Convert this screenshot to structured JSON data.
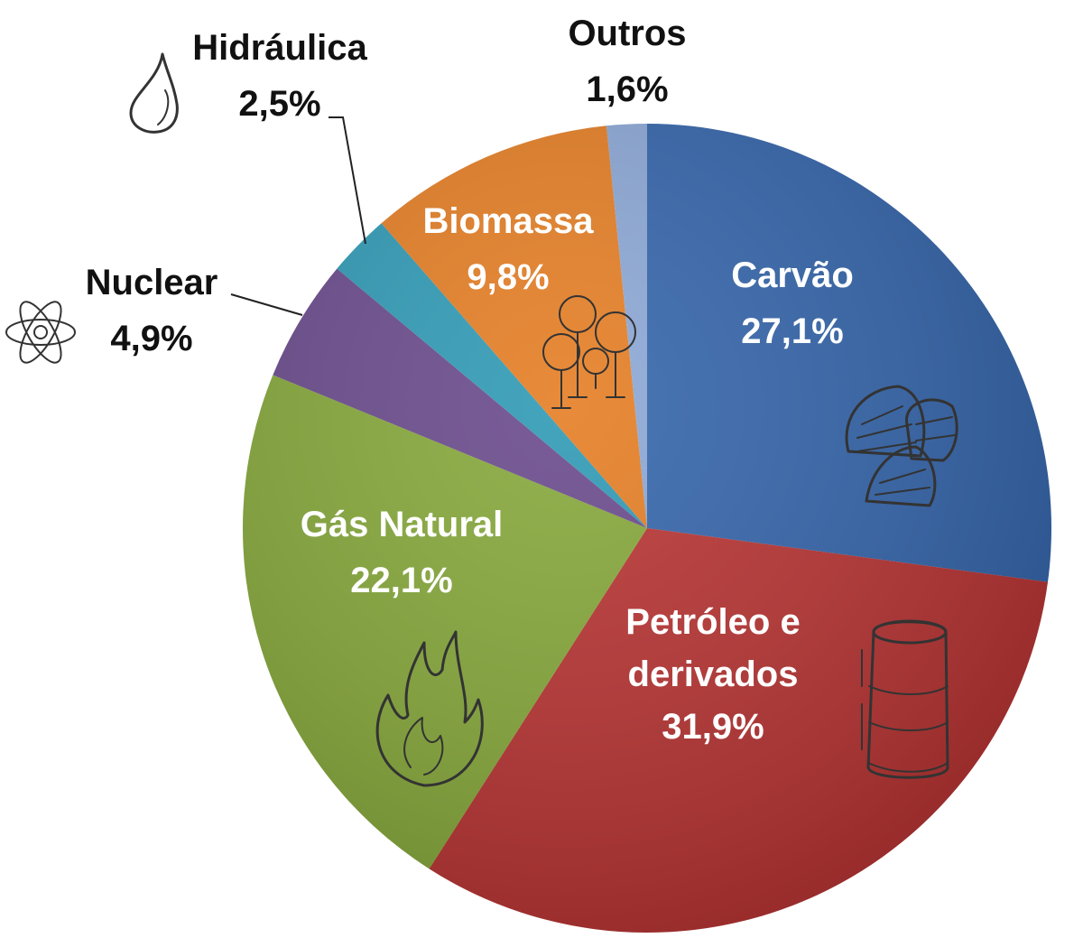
{
  "chart_data": {
    "type": "pie",
    "title": "",
    "start": "12 o'clock",
    "direction": "clockwise",
    "slices": [
      {
        "name": "Carvão",
        "value": 27.1,
        "label": "27,1%",
        "color": "#3465ab",
        "label_position": "inside",
        "icon": "coal-icon"
      },
      {
        "name": "Petróleo e derivados",
        "value": 31.9,
        "label": "31,9%",
        "color": "#b83433",
        "label_position": "inside",
        "icon": "oil-barrel-icon"
      },
      {
        "name": "Gás Natural",
        "value": 22.1,
        "label": "22,1%",
        "color": "#86a83a",
        "label_position": "inside",
        "icon": "flame-icon"
      },
      {
        "name": "Nuclear",
        "value": 4.9,
        "label": "4,9%",
        "color": "#6a4a8c",
        "label_position": "outside",
        "icon": "atom-icon"
      },
      {
        "name": "Hidráulica",
        "value": 2.5,
        "label": "2,5%",
        "color": "#2f9ab5",
        "label_position": "outside",
        "icon": "water-drop-icon"
      },
      {
        "name": "Biomassa",
        "value": 9.8,
        "label": "9,8%",
        "color": "#e57e24",
        "label_position": "inside",
        "icon": "trees-icon"
      },
      {
        "name": "Outros",
        "value": 1.6,
        "label": "1,6%",
        "color": "#8ca8d6",
        "label_position": "outside",
        "icon": ""
      }
    ]
  }
}
